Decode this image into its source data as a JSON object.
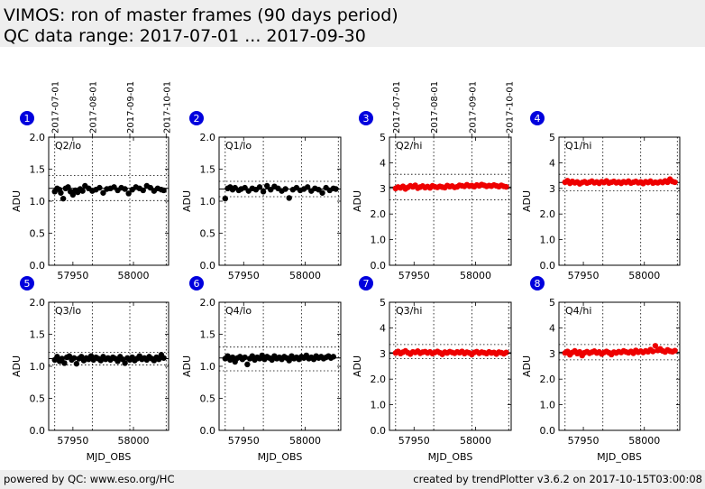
{
  "header": {
    "title": "VIMOS: ron of master frames (90 days period)",
    "subtitle": "QC data range: 2017-07-01 ... 2017-09-30"
  },
  "footer": {
    "left": "powered by QC: www.eso.org/HC",
    "right": "created by trendPlotter v3.6.2 on 2017-10-15T03:00:08"
  },
  "colors": {
    "badge": "#0000dd",
    "lo_series": "#000000",
    "hi_series": "#ee0000",
    "frame_bg": "#eeeeee"
  },
  "chart_data": [
    {
      "type": "scatter",
      "number": "1",
      "label": "Q2/lo",
      "series_color": "#000000",
      "xlabel": "",
      "ylabel": "ADU",
      "xlim": [
        57930,
        58029
      ],
      "ylim": [
        0,
        2.0
      ],
      "xticks": [
        57950,
        58000
      ],
      "yticks": [
        0.0,
        0.5,
        1.0,
        1.5,
        2.0
      ],
      "top_date_ticks": [
        {
          "label": "2017-07-01",
          "mjd": 57935
        },
        {
          "label": "2017-08-01",
          "mjd": 57966
        },
        {
          "label": "2017-09-01",
          "mjd": 57997
        },
        {
          "label": "2017-10-01",
          "mjd": 58027
        }
      ],
      "ref_lines": {
        "median": 1.2,
        "lower": 1.01,
        "upper": 1.4
      },
      "series": [
        {
          "x": [
            57935,
            57937,
            57939,
            57940,
            57942,
            57944,
            57946,
            57948,
            57950,
            57952,
            57954,
            57956,
            57958,
            57960,
            57963,
            57966,
            57969,
            57972,
            57975,
            57978,
            57981,
            57984,
            57987,
            57990,
            57993,
            57996,
            57999,
            58002,
            58005,
            58008,
            58011,
            58014,
            58017,
            58020,
            58023,
            58025
          ],
          "y": [
            1.15,
            1.2,
            1.18,
            1.13,
            1.04,
            1.2,
            1.22,
            1.15,
            1.1,
            1.17,
            1.14,
            1.19,
            1.16,
            1.24,
            1.2,
            1.16,
            1.18,
            1.21,
            1.13,
            1.19,
            1.2,
            1.22,
            1.17,
            1.21,
            1.19,
            1.12,
            1.18,
            1.22,
            1.2,
            1.17,
            1.24,
            1.21,
            1.16,
            1.2,
            1.18,
            1.17
          ]
        }
      ]
    },
    {
      "type": "scatter",
      "number": "2",
      "label": "Q1/lo",
      "series_color": "#000000",
      "xlabel": "",
      "ylabel": "ADU",
      "xlim": [
        57930,
        58029
      ],
      "ylim": [
        0,
        2.0
      ],
      "xticks": [
        57950,
        58000
      ],
      "yticks": [
        0.0,
        0.5,
        1.0,
        1.5,
        2.0
      ],
      "ref_lines": {
        "median": 1.19,
        "lower": 1.07,
        "upper": 1.31
      },
      "series": [
        {
          "x": [
            57935,
            57937,
            57939,
            57941,
            57943,
            57946,
            57948,
            57951,
            57954,
            57957,
            57960,
            57963,
            57966,
            57969,
            57972,
            57975,
            57978,
            57981,
            57984,
            57987,
            57990,
            57993,
            57996,
            57999,
            58002,
            58005,
            58008,
            58011,
            58014,
            58017,
            58020,
            58023,
            58025
          ],
          "y": [
            1.04,
            1.2,
            1.22,
            1.18,
            1.21,
            1.17,
            1.19,
            1.21,
            1.16,
            1.2,
            1.18,
            1.22,
            1.15,
            1.24,
            1.18,
            1.23,
            1.2,
            1.16,
            1.19,
            1.05,
            1.18,
            1.21,
            1.17,
            1.19,
            1.22,
            1.16,
            1.2,
            1.18,
            1.13,
            1.21,
            1.17,
            1.2,
            1.19
          ]
        }
      ]
    },
    {
      "type": "scatter",
      "number": "3",
      "label": "Q2/hi",
      "series_color": "#ee0000",
      "xlabel": "",
      "ylabel": "ADU",
      "xlim": [
        57930,
        58029
      ],
      "ylim": [
        0,
        5
      ],
      "xticks": [
        57950,
        58000
      ],
      "yticks": [
        0,
        1,
        2,
        3,
        4,
        5
      ],
      "top_date_ticks": [
        {
          "label": "2017-07-01",
          "mjd": 57935
        },
        {
          "label": "2017-08-01",
          "mjd": 57966
        },
        {
          "label": "2017-09-01",
          "mjd": 57997
        },
        {
          "label": "2017-10-01",
          "mjd": 58027
        }
      ],
      "ref_lines": {
        "median": 3.05,
        "lower": 2.55,
        "upper": 3.55
      },
      "series": [
        {
          "x": [
            57935,
            57937,
            57939,
            57941,
            57943,
            57945,
            57947,
            57949,
            57951,
            57953,
            57955,
            57957,
            57959,
            57961,
            57963,
            57965,
            57967,
            57969,
            57971,
            57973,
            57975,
            57977,
            57979,
            57981,
            57983,
            57985,
            57987,
            57989,
            57991,
            57993,
            57995,
            57997,
            57999,
            58001,
            58003,
            58005,
            58007,
            58009,
            58011,
            58013,
            58015,
            58017,
            58019,
            58021,
            58023,
            58025
          ],
          "y": [
            3.0,
            3.05,
            3.02,
            3.08,
            2.98,
            3.04,
            3.1,
            3.06,
            3.12,
            3.01,
            3.05,
            3.09,
            3.03,
            3.07,
            3.02,
            3.1,
            3.06,
            3.04,
            3.08,
            3.05,
            3.03,
            3.11,
            3.07,
            3.09,
            3.04,
            3.06,
            3.12,
            3.1,
            3.08,
            3.14,
            3.09,
            3.11,
            3.07,
            3.13,
            3.1,
            3.15,
            3.12,
            3.08,
            3.11,
            3.09,
            3.13,
            3.1,
            3.07,
            3.12,
            3.08,
            3.06
          ]
        }
      ]
    },
    {
      "type": "scatter",
      "number": "4",
      "label": "Q1/hi",
      "series_color": "#ee0000",
      "xlabel": "",
      "ylabel": "ADU",
      "xlim": [
        57930,
        58029
      ],
      "ylim": [
        0,
        5
      ],
      "xticks": [
        57950,
        58000
      ],
      "yticks": [
        0,
        1,
        2,
        3,
        4,
        5
      ],
      "ref_lines": {
        "median": 3.23,
        "lower": 2.9,
        "upper": 3.55
      },
      "series": [
        {
          "x": [
            57935,
            57937,
            57939,
            57941,
            57943,
            57945,
            57947,
            57949,
            57951,
            57953,
            57955,
            57957,
            57959,
            57961,
            57963,
            57965,
            57967,
            57969,
            57971,
            57973,
            57975,
            57977,
            57979,
            57981,
            57983,
            57985,
            57987,
            57989,
            57991,
            57993,
            57995,
            57997,
            57999,
            58001,
            58003,
            58005,
            58007,
            58009,
            58011,
            58013,
            58015,
            58017,
            58019,
            58021,
            58023,
            58025
          ],
          "y": [
            3.24,
            3.3,
            3.2,
            3.27,
            3.22,
            3.25,
            3.18,
            3.23,
            3.26,
            3.21,
            3.24,
            3.28,
            3.22,
            3.25,
            3.2,
            3.26,
            3.23,
            3.29,
            3.21,
            3.24,
            3.27,
            3.22,
            3.25,
            3.2,
            3.26,
            3.23,
            3.28,
            3.21,
            3.24,
            3.27,
            3.22,
            3.25,
            3.19,
            3.26,
            3.23,
            3.28,
            3.21,
            3.24,
            3.22,
            3.26,
            3.23,
            3.29,
            3.24,
            3.36,
            3.27,
            3.24
          ]
        }
      ]
    },
    {
      "type": "scatter",
      "number": "5",
      "label": "Q3/lo",
      "series_color": "#000000",
      "xlabel": "MJD_OBS",
      "ylabel": "ADU",
      "xlim": [
        57930,
        58029
      ],
      "ylim": [
        0,
        2.0
      ],
      "xticks": [
        57950,
        58000
      ],
      "yticks": [
        0.0,
        0.5,
        1.0,
        1.5,
        2.0
      ],
      "ref_lines": {
        "median": 1.12,
        "lower": 1.02,
        "upper": 1.22
      },
      "series": [
        {
          "x": [
            57935,
            57937,
            57939,
            57941,
            57943,
            57945,
            57947,
            57949,
            57951,
            57953,
            57955,
            57957,
            57959,
            57961,
            57963,
            57965,
            57967,
            57969,
            57971,
            57973,
            57975,
            57977,
            57979,
            57981,
            57983,
            57985,
            57987,
            57989,
            57991,
            57993,
            57995,
            57997,
            57999,
            58001,
            58003,
            58005,
            58007,
            58009,
            58011,
            58013,
            58015,
            58017,
            58019,
            58021,
            58023,
            58025
          ],
          "y": [
            1.1,
            1.15,
            1.08,
            1.12,
            1.05,
            1.14,
            1.16,
            1.1,
            1.13,
            1.04,
            1.12,
            1.15,
            1.09,
            1.13,
            1.11,
            1.16,
            1.1,
            1.14,
            1.12,
            1.09,
            1.15,
            1.11,
            1.13,
            1.1,
            1.14,
            1.12,
            1.08,
            1.15,
            1.11,
            1.05,
            1.13,
            1.1,
            1.14,
            1.09,
            1.12,
            1.16,
            1.11,
            1.13,
            1.1,
            1.15,
            1.12,
            1.09,
            1.14,
            1.11,
            1.18,
            1.13
          ]
        }
      ]
    },
    {
      "type": "scatter",
      "number": "6",
      "label": "Q4/lo",
      "series_color": "#000000",
      "xlabel": "MJD_OBS",
      "ylabel": "ADU",
      "xlim": [
        57930,
        58029
      ],
      "ylim": [
        0,
        2.0
      ],
      "xticks": [
        57950,
        58000
      ],
      "yticks": [
        0.0,
        0.5,
        1.0,
        1.5,
        2.0
      ],
      "ref_lines": {
        "median": 1.13,
        "lower": 0.93,
        "upper": 1.3
      },
      "series": [
        {
          "x": [
            57935,
            57937,
            57939,
            57941,
            57943,
            57945,
            57947,
            57949,
            57951,
            57953,
            57955,
            57957,
            57959,
            57961,
            57963,
            57965,
            57967,
            57969,
            57971,
            57973,
            57975,
            57977,
            57979,
            57981,
            57983,
            57985,
            57987,
            57989,
            57991,
            57993,
            57995,
            57997,
            57999,
            58001,
            58003,
            58005,
            58007,
            58009,
            58011,
            58013,
            58015,
            58017,
            58019,
            58021,
            58023
          ],
          "y": [
            1.12,
            1.16,
            1.1,
            1.14,
            1.07,
            1.13,
            1.15,
            1.11,
            1.14,
            1.03,
            1.12,
            1.16,
            1.1,
            1.14,
            1.12,
            1.17,
            1.11,
            1.15,
            1.13,
            1.1,
            1.16,
            1.12,
            1.14,
            1.11,
            1.15,
            1.13,
            1.09,
            1.16,
            1.12,
            1.14,
            1.11,
            1.15,
            1.13,
            1.17,
            1.12,
            1.14,
            1.11,
            1.16,
            1.13,
            1.15,
            1.12,
            1.14,
            1.16,
            1.13,
            1.15
          ]
        }
      ]
    },
    {
      "type": "scatter",
      "number": "7",
      "label": "Q3/hi",
      "series_color": "#ee0000",
      "xlabel": "MJD_OBS",
      "ylabel": "ADU",
      "xlim": [
        57930,
        58029
      ],
      "ylim": [
        0,
        5
      ],
      "xticks": [
        57950,
        58000
      ],
      "yticks": [
        0,
        1,
        2,
        3,
        4,
        5
      ],
      "ref_lines": {
        "median": 3.03,
        "lower": 2.8,
        "upper": 3.35
      },
      "series": [
        {
          "x": [
            57935,
            57937,
            57939,
            57941,
            57943,
            57945,
            57947,
            57949,
            57951,
            57953,
            57955,
            57957,
            57959,
            57961,
            57963,
            57965,
            57967,
            57969,
            57971,
            57973,
            57975,
            57977,
            57979,
            57981,
            57983,
            57985,
            57987,
            57989,
            57991,
            57993,
            57995,
            57997,
            57999,
            58001,
            58003,
            58005,
            58007,
            58009,
            58011,
            58013,
            58015,
            58017,
            58019,
            58021,
            58023,
            58025
          ],
          "y": [
            3.02,
            3.08,
            3.0,
            3.05,
            3.1,
            3.03,
            2.98,
            3.06,
            3.04,
            3.09,
            3.01,
            3.05,
            3.07,
            3.02,
            3.06,
            3.0,
            3.04,
            3.08,
            3.03,
            2.97,
            3.05,
            3.02,
            3.07,
            3.04,
            3.01,
            3.06,
            3.03,
            3.08,
            3.0,
            3.05,
            3.02,
            2.96,
            3.04,
            3.07,
            3.01,
            3.05,
            3.03,
            3.0,
            3.06,
            3.02,
            3.04,
            2.98,
            3.05,
            3.03,
            2.99,
            3.04
          ]
        }
      ]
    },
    {
      "type": "scatter",
      "number": "8",
      "label": "Q4/hi",
      "series_color": "#ee0000",
      "xlabel": "MJD_OBS",
      "ylabel": "ADU",
      "xlim": [
        57930,
        58029
      ],
      "ylim": [
        0,
        5
      ],
      "xticks": [
        57950,
        58000
      ],
      "yticks": [
        0,
        1,
        2,
        3,
        4,
        5
      ],
      "ref_lines": {
        "median": 3.05,
        "lower": 2.75,
        "upper": 3.35
      },
      "series": [
        {
          "x": [
            57935,
            57937,
            57939,
            57941,
            57943,
            57945,
            57947,
            57949,
            57951,
            57953,
            57955,
            57957,
            57959,
            57961,
            57963,
            57965,
            57967,
            57969,
            57971,
            57973,
            57975,
            57977,
            57979,
            57981,
            57983,
            57985,
            57987,
            57989,
            57991,
            57993,
            57995,
            57997,
            57999,
            58001,
            58003,
            58005,
            58007,
            58009,
            58011,
            58013,
            58015,
            58017,
            58019,
            58021,
            58023,
            58025
          ],
          "y": [
            3.02,
            3.08,
            2.95,
            3.04,
            3.1,
            3.0,
            3.06,
            2.92,
            3.03,
            3.07,
            3.01,
            3.05,
            3.09,
            3.02,
            3.06,
            2.98,
            3.04,
            3.08,
            3.03,
            2.96,
            3.05,
            3.02,
            3.07,
            3.04,
            3.1,
            3.06,
            3.03,
            3.08,
            3.01,
            3.12,
            3.05,
            3.09,
            3.04,
            3.1,
            3.07,
            3.15,
            3.08,
            3.3,
            3.12,
            3.18,
            3.1,
            3.06,
            3.14,
            3.09,
            3.07,
            3.11
          ]
        }
      ]
    }
  ]
}
